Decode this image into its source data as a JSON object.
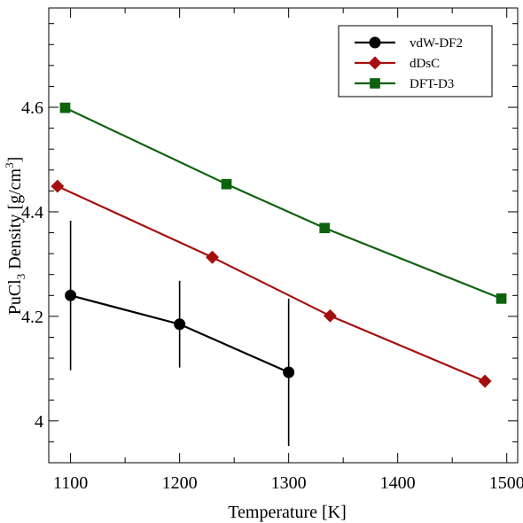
{
  "chart_data": {
    "type": "line",
    "title": "",
    "xlabel": "Temperature [K]",
    "ylabel_main": "PuCl",
    "ylabel_sub": "3",
    "ylabel_mid": " Density [g/cm",
    "ylabel_sup": "3",
    "ylabel_end": "]",
    "xlim": [
      1080,
      1510
    ],
    "ylim": [
      3.92,
      4.79
    ],
    "xticks": [
      1100,
      1200,
      1300,
      1400,
      1500
    ],
    "xtick_labels": [
      "1100",
      "1200",
      "1300",
      "1400",
      "1500"
    ],
    "yticks": [
      4.0,
      4.2,
      4.4,
      4.6
    ],
    "ytick_labels": [
      "4",
      "4.2",
      "4.4",
      "4.6"
    ],
    "legend_position": "top-right",
    "grid": false,
    "series": [
      {
        "name": "vdW-DF2",
        "color": "#000000",
        "marker": "circle",
        "x": [
          1100,
          1200,
          1300
        ],
        "y": [
          4.24,
          4.185,
          4.093
        ],
        "yerr": [
          0.143,
          0.083,
          0.141
        ]
      },
      {
        "name": "dDsC",
        "color": "#a50f0f",
        "marker": "diamond",
        "x": [
          1088,
          1230,
          1338,
          1480
        ],
        "y": [
          4.449,
          4.313,
          4.201,
          4.076
        ]
      },
      {
        "name": "DFT-D3",
        "color": "#0d620d",
        "marker": "square",
        "x": [
          1095,
          1243,
          1333,
          1495
        ],
        "y": [
          4.599,
          4.453,
          4.369,
          4.234
        ]
      }
    ]
  }
}
